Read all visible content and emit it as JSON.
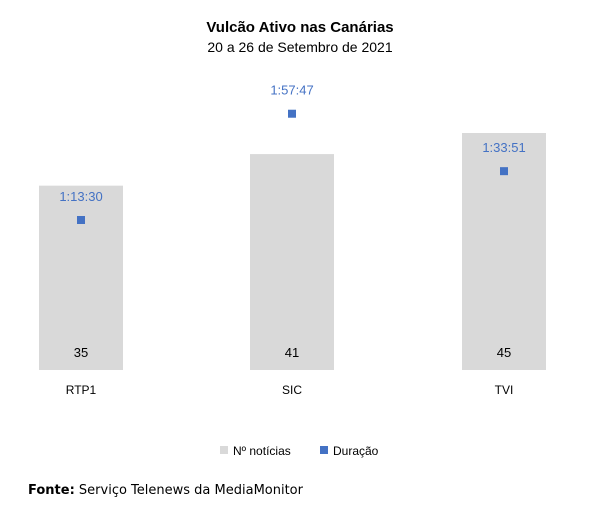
{
  "chart_data": {
    "type": "bar",
    "title": "Vulcão Ativo nas Canárias",
    "subtitle": "20 a 26 de Setembro de 2021",
    "categories": [
      "RTP1",
      "SIC",
      "TVI"
    ],
    "series": [
      {
        "name": "Nº notícias",
        "kind": "bar",
        "values": [
          35,
          41,
          45
        ],
        "color": "#d9d9d9",
        "labels": [
          "35",
          "41",
          "45"
        ]
      },
      {
        "name": "Duração",
        "kind": "marker",
        "values_seconds": [
          4410,
          7067,
          5631
        ],
        "labels": [
          "1:13:30",
          "1:57:47",
          "1:33:51"
        ],
        "color": "#4472c4"
      }
    ],
    "legend_position": "bottom",
    "grid": false
  },
  "source": {
    "label": "Fonte:",
    "text": "Serviço Telenews da MediaMonitor"
  }
}
